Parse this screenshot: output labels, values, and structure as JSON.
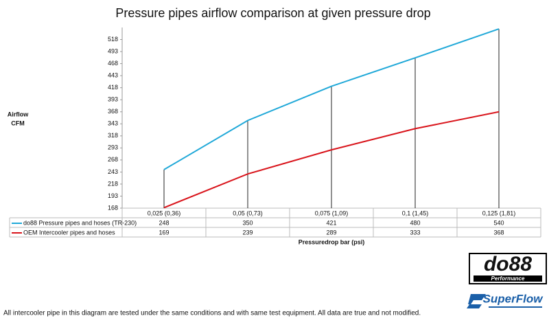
{
  "chart_data": {
    "type": "line",
    "title": "Pressure pipes airflow comparison at given pressure drop",
    "ylabel": [
      "Airflow",
      "CFM"
    ],
    "xlabel": "Pressuredrop bar (psi)",
    "categories": [
      "0,025 (0,36)",
      "0,05 (0,73)",
      "0,075 (1,09)",
      "0,1 (1,45)",
      "0,125 (1,81)"
    ],
    "series": [
      {
        "name": "do88 Pressure pipes and hoses (TR-230)",
        "color": "#1fa8d8",
        "values": [
          248,
          350,
          421,
          480,
          540
        ]
      },
      {
        "name": "OEM Intercooler pipes and hoses",
        "color": "#d9141b",
        "values": [
          169,
          239,
          289,
          333,
          368
        ]
      }
    ],
    "ylim": [
      168,
      543
    ],
    "yticks": [
      168,
      193,
      218,
      243,
      268,
      293,
      318,
      343,
      368,
      393,
      418,
      443,
      468,
      493,
      518
    ],
    "grid": false,
    "drop_lines": true
  },
  "footnote": "All intercooler pipe in this diagram are tested under the same conditions and with same test equipment. All data are true and not modified.",
  "logos": {
    "do88": "do88",
    "do88_sub": "Performance",
    "superflow": "SuperFlow"
  }
}
